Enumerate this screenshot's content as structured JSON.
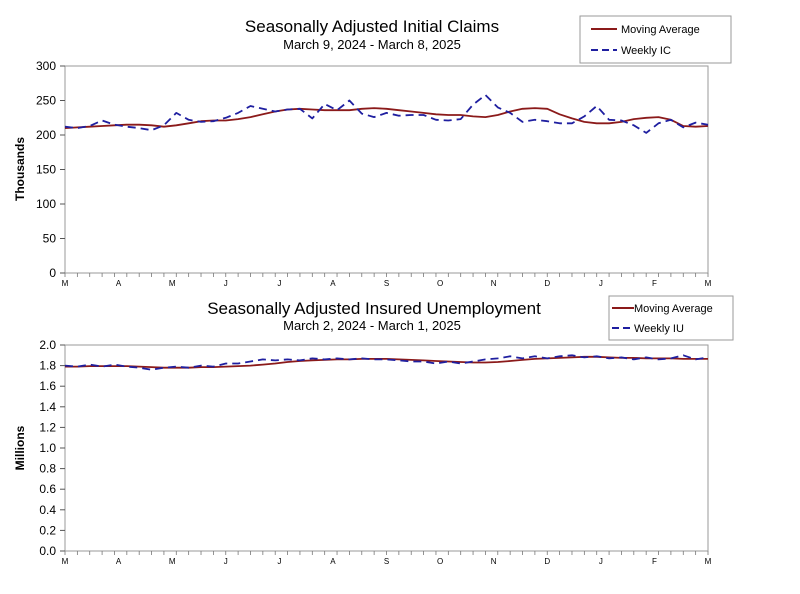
{
  "chart_data": [
    {
      "type": "line",
      "title": "Seasonally Adjusted Initial Claims",
      "subtitle": "March 9, 2024 - March 8, 2025",
      "ylabel": "Thousands",
      "xlabel": "",
      "ylim": [
        0,
        300
      ],
      "yticks": [
        0,
        50,
        100,
        150,
        200,
        250,
        300
      ],
      "x_ticks": [
        "M",
        "A",
        "M",
        "J",
        "J",
        "A",
        "S",
        "O",
        "N",
        "D",
        "J",
        "F",
        "M"
      ],
      "x_count": 53,
      "legend": [
        "Moving Average",
        "Weekly IC"
      ],
      "legend_position": "top-right",
      "series": [
        {
          "name": "Moving Average",
          "color": "#8b1a1a",
          "style": "solid",
          "values": [
            210,
            211,
            212,
            213,
            214,
            215,
            215,
            214,
            212,
            214,
            217,
            220,
            221,
            221,
            223,
            226,
            230,
            234,
            237,
            238,
            237,
            236,
            236,
            236,
            238,
            239,
            238,
            236,
            234,
            232,
            230,
            229,
            229,
            227,
            226,
            229,
            234,
            238,
            239,
            238,
            230,
            224,
            219,
            217,
            217,
            219,
            223,
            225,
            226,
            222,
            213,
            212,
            213
          ]
        },
        {
          "name": "Weekly IC",
          "color": "#1f1fa0",
          "style": "dashed",
          "values": [
            212,
            210,
            213,
            221,
            215,
            212,
            210,
            207,
            214,
            232,
            222,
            219,
            220,
            225,
            232,
            242,
            238,
            234,
            237,
            238,
            224,
            245,
            236,
            250,
            231,
            226,
            232,
            228,
            229,
            229,
            222,
            221,
            223,
            244,
            258,
            240,
            232,
            219,
            222,
            220,
            217,
            217,
            227,
            242,
            222,
            221,
            214,
            203,
            217,
            222,
            211,
            218,
            215
          ]
        }
      ]
    },
    {
      "type": "line",
      "title": "Seasonally Adjusted Insured Unemployment",
      "subtitle": "March 2, 2024 - March 1, 2025",
      "ylabel": "Millions",
      "xlabel": "",
      "ylim": [
        0.0,
        2.0
      ],
      "yticks": [
        "0.0",
        "0.2",
        "0.4",
        "0.6",
        "0.8",
        "1.0",
        "1.2",
        "1.4",
        "1.6",
        "1.8",
        "2.0"
      ],
      "x_ticks": [
        "M",
        "A",
        "M",
        "J",
        "J",
        "A",
        "S",
        "O",
        "N",
        "D",
        "J",
        "F",
        "M"
      ],
      "x_count": 53,
      "legend": [
        "Moving Average",
        "Weekly IU"
      ],
      "legend_position": "top-right",
      "series": [
        {
          "name": "Moving Average",
          "color": "#8b1a1a",
          "style": "solid",
          "values": [
            1.79,
            1.79,
            1.795,
            1.795,
            1.795,
            1.795,
            1.79,
            1.785,
            1.78,
            1.78,
            1.78,
            1.785,
            1.785,
            1.79,
            1.795,
            1.8,
            1.81,
            1.82,
            1.835,
            1.845,
            1.85,
            1.855,
            1.86,
            1.86,
            1.865,
            1.865,
            1.865,
            1.86,
            1.855,
            1.85,
            1.845,
            1.84,
            1.835,
            1.83,
            1.83,
            1.835,
            1.845,
            1.855,
            1.865,
            1.87,
            1.875,
            1.88,
            1.885,
            1.885,
            1.88,
            1.875,
            1.875,
            1.87,
            1.87,
            1.87,
            1.865,
            1.865,
            1.865
          ]
        },
        {
          "name": "Weekly IU",
          "color": "#1f1fa0",
          "style": "dashed",
          "values": [
            1.8,
            1.79,
            1.81,
            1.79,
            1.81,
            1.79,
            1.78,
            1.76,
            1.78,
            1.79,
            1.78,
            1.8,
            1.79,
            1.82,
            1.82,
            1.84,
            1.86,
            1.85,
            1.86,
            1.85,
            1.87,
            1.86,
            1.87,
            1.86,
            1.87,
            1.86,
            1.86,
            1.85,
            1.84,
            1.84,
            1.82,
            1.84,
            1.82,
            1.84,
            1.86,
            1.87,
            1.89,
            1.87,
            1.89,
            1.87,
            1.89,
            1.9,
            1.88,
            1.89,
            1.87,
            1.88,
            1.86,
            1.88,
            1.86,
            1.87,
            1.9,
            1.86,
            1.88
          ]
        }
      ]
    }
  ]
}
